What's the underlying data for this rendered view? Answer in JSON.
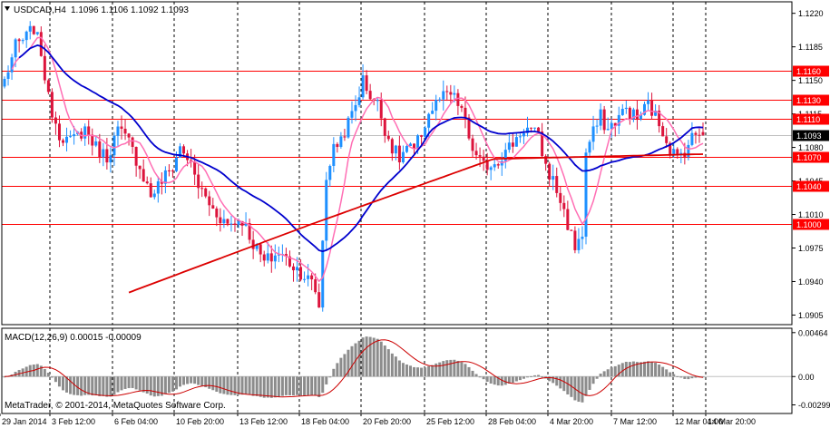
{
  "header": {
    "symbol_timeframe": "USDCAD,H4",
    "ohlc": "1.1096 1.1106 1.1092 1.1093"
  },
  "macd_label": "MACD(12,26,9) 0.00015 -0.00009",
  "copyright": "MetaTrader, © 2001-2014, MetaQuotes Software Corp.",
  "colors": {
    "background": "#ffffff",
    "bull_candle": "#1e90ff",
    "bear_candle": "#dc143c",
    "ma_fast": "#ff6eb4",
    "ma_mid": "#0000cd",
    "ma_slow": "#dc0000",
    "level_line": "#ff0000",
    "macd_hist": "#8c8c8c",
    "macd_signal": "#cc0000",
    "grid": "#000000",
    "current_price_box": "#000000"
  },
  "chart_data": [
    {
      "type": "candlestick",
      "name": "USDCAD,H4",
      "price_axis": {
        "ticks": [
          "1.1220",
          "1.1185",
          "1.1150",
          "1.1115",
          "1.1080",
          "1.1045",
          "1.1010",
          "1.0975",
          "1.0940",
          "1.0905"
        ],
        "range": [
          1.0895,
          1.1232
        ]
      },
      "time_axis": {
        "ticks": [
          "29 Jan 2014",
          "3 Feb 12:00",
          "6 Feb 04:00",
          "10 Feb 20:00",
          "13 Feb 12:00",
          "18 Feb 04:00",
          "20 Feb 20:00",
          "25 Feb 12:00",
          "28 Feb 04:00",
          "4 Mar 20:00",
          "7 Mar 12:00",
          "12 Mar 04:00",
          "14 Mar 20:00"
        ]
      },
      "levels": [
        {
          "value": 1.116,
          "label": "1.1160"
        },
        {
          "value": 1.113,
          "label": "1.1130"
        },
        {
          "value": 1.111,
          "label": "1.1110"
        },
        {
          "value": 1.107,
          "label": "1.1070"
        },
        {
          "value": 1.104,
          "label": "1.1040"
        },
        {
          "value": 1.1,
          "label": "1.1000"
        }
      ],
      "current_price": {
        "value": 1.1093,
        "label": "1.1093"
      },
      "anchors": [
        [
          0,
          1.115
        ],
        [
          3,
          1.1185
        ],
        [
          6,
          1.1195
        ],
        [
          8,
          1.1205
        ],
        [
          10,
          1.118
        ],
        [
          12,
          1.113
        ],
        [
          15,
          1.1095
        ],
        [
          18,
          1.1085
        ],
        [
          22,
          1.11
        ],
        [
          25,
          1.108
        ],
        [
          28,
          1.107
        ],
        [
          31,
          1.1098
        ],
        [
          34,
          1.1085
        ],
        [
          37,
          1.106
        ],
        [
          40,
          1.103
        ],
        [
          43,
          1.1045
        ],
        [
          46,
          1.106
        ],
        [
          48,
          1.108
        ],
        [
          50,
          1.107
        ],
        [
          53,
          1.104
        ],
        [
          57,
          1.1015
        ],
        [
          61,
          1.1
        ],
        [
          65,
          1.1005
        ],
        [
          68,
          1.098
        ],
        [
          71,
          1.096
        ],
        [
          75,
          1.097
        ],
        [
          78,
          1.096
        ],
        [
          81,
          1.095
        ],
        [
          84,
          1.0938
        ],
        [
          85,
          1.093
        ],
        [
          86,
          1.0915
        ],
        [
          88,
          1.105
        ],
        [
          90,
          1.1078
        ],
        [
          92,
          1.109
        ],
        [
          94,
          1.1105
        ],
        [
          96,
          1.1125
        ],
        [
          98,
          1.115
        ],
        [
          100,
          1.1135
        ],
        [
          102,
          1.1125
        ],
        [
          104,
          1.11
        ],
        [
          106,
          1.108
        ],
        [
          108,
          1.1068
        ],
        [
          110,
          1.108
        ],
        [
          112,
          1.1075
        ],
        [
          114,
          1.1095
        ],
        [
          116,
          1.1115
        ],
        [
          119,
          1.113
        ],
        [
          122,
          1.1135
        ],
        [
          125,
          1.112
        ],
        [
          127,
          1.109
        ],
        [
          129,
          1.1068
        ],
        [
          131,
          1.106
        ],
        [
          134,
          1.1065
        ],
        [
          137,
          1.1075
        ],
        [
          140,
          1.109
        ],
        [
          142,
          1.11
        ],
        [
          144,
          1.1098
        ],
        [
          146,
          1.109
        ],
        [
          148,
          1.106
        ],
        [
          150,
          1.1045
        ],
        [
          152,
          1.1025
        ],
        [
          154,
          1.1
        ],
        [
          156,
          1.0975
        ],
        [
          157,
          1.0988
        ],
        [
          158,
          1.0985
        ],
        [
          159,
          1.1075
        ],
        [
          161,
          1.1095
        ],
        [
          163,
          1.1112
        ],
        [
          165,
          1.1098
        ],
        [
          167,
          1.1108
        ],
        [
          170,
          1.112
        ],
        [
          173,
          1.111
        ],
        [
          176,
          1.1125
        ],
        [
          178,
          1.1112
        ],
        [
          180,
          1.1098
        ],
        [
          182,
          1.108
        ],
        [
          184,
          1.1068
        ],
        [
          186,
          1.1078
        ],
        [
          188,
          1.109
        ],
        [
          190,
          1.1098
        ],
        [
          191,
          1.1093
        ]
      ]
    },
    {
      "type": "macd",
      "name": "MACD(12,26,9)",
      "value": 0.00015,
      "signal": -9e-05,
      "axis": {
        "ticks": [
          "0.00464",
          "0.00",
          "-0.00299"
        ],
        "range": [
          -0.0039,
          0.0051
        ]
      }
    }
  ]
}
